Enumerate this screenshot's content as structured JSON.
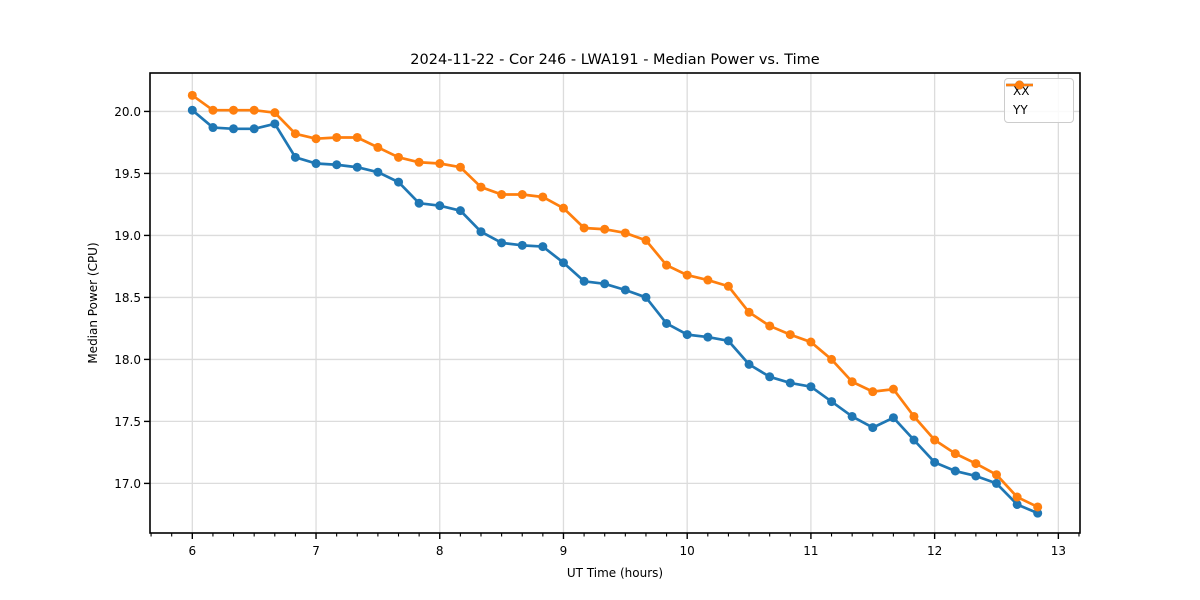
{
  "figure": {
    "title": "2024-11-22 - Cor 246 - LWA191 - Median Power vs. Time"
  },
  "chart_data": {
    "type": "line",
    "title": "2024-11-22 - Cor 246 - LWA191 - Median Power vs. Time",
    "xlabel": "UT Time (hours)",
    "ylabel": "Median Power (CPU)",
    "x": [
      6.0,
      6.167,
      6.333,
      6.5,
      6.667,
      6.833,
      7.0,
      7.167,
      7.333,
      7.5,
      7.667,
      7.833,
      8.0,
      8.167,
      8.333,
      8.5,
      8.667,
      8.833,
      9.0,
      9.167,
      9.333,
      9.5,
      9.667,
      9.833,
      10.0,
      10.167,
      10.333,
      10.5,
      10.667,
      10.833,
      11.0,
      11.167,
      11.333,
      11.5,
      11.667,
      11.833,
      12.0,
      12.167,
      12.333,
      12.5,
      12.667,
      12.833
    ],
    "series": [
      {
        "name": "XX",
        "color": "#1f77b4",
        "marker": "circle",
        "values": [
          20.01,
          19.87,
          19.86,
          19.86,
          19.9,
          19.63,
          19.58,
          19.57,
          19.55,
          19.51,
          19.43,
          19.26,
          19.24,
          19.2,
          19.03,
          18.94,
          18.92,
          18.91,
          18.78,
          18.63,
          18.61,
          18.56,
          18.5,
          18.29,
          18.2,
          18.18,
          18.15,
          17.96,
          17.86,
          17.81,
          17.78,
          17.66,
          17.54,
          17.45,
          17.53,
          17.35,
          17.17,
          17.1,
          17.06,
          17.0,
          16.83,
          16.76
        ]
      },
      {
        "name": "YY",
        "color": "#ff7f0e",
        "marker": "circle",
        "values": [
          20.13,
          20.01,
          20.01,
          20.01,
          19.99,
          19.82,
          19.78,
          19.79,
          19.79,
          19.71,
          19.63,
          19.59,
          19.58,
          19.55,
          19.39,
          19.33,
          19.33,
          19.31,
          19.22,
          19.06,
          19.05,
          19.02,
          18.96,
          18.76,
          18.68,
          18.64,
          18.59,
          18.38,
          18.27,
          18.2,
          18.14,
          18.0,
          17.82,
          17.74,
          17.76,
          17.54,
          17.35,
          17.24,
          17.16,
          17.07,
          16.89,
          16.81
        ]
      }
    ],
    "xlim": [
      5.658,
      13.175
    ],
    "ylim": [
      16.6,
      20.31
    ],
    "xticks": [
      6,
      7,
      8,
      9,
      10,
      11,
      12,
      13
    ],
    "yticks": [
      17.0,
      17.5,
      18.0,
      18.5,
      19.0,
      19.5,
      20.0
    ],
    "x_minor_step": 0.1666667,
    "grid": true,
    "grid_color": "#dcdcdc",
    "legend_position": "upper right"
  }
}
